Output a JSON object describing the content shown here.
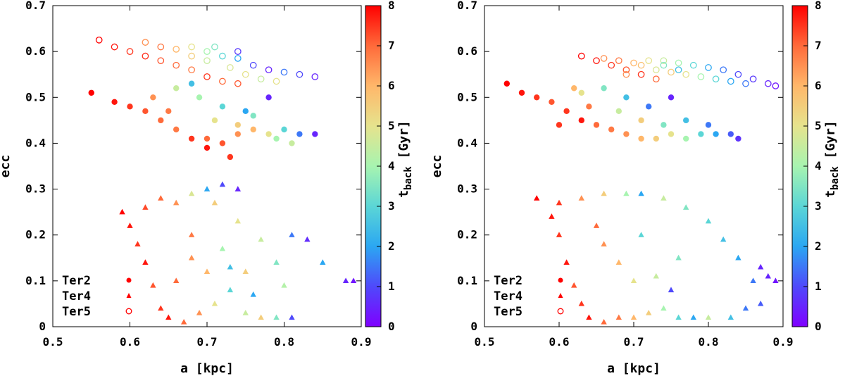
{
  "colormap": [
    "#7f00ff",
    "#4f49fb",
    "#2ba7f2",
    "#5bd6d6",
    "#a7f4b0",
    "#e6e38d",
    "#ffb76a",
    "#ff6a3a",
    "#ff0000"
  ],
  "chart_data": [
    {
      "type": "scatter",
      "xlabel": "a [kpc]",
      "ylabel": "ecc",
      "xlim": [
        0.5,
        0.9
      ],
      "ylim": [
        0,
        0.7
      ],
      "xticks": [
        "0.5",
        "0.6",
        "0.7",
        "0.8",
        "0.9"
      ],
      "yticks": [
        "0",
        "0.1",
        "0.2",
        "0.3",
        "0.4",
        "0.5",
        "0.6",
        "0.7"
      ],
      "grid": false,
      "legend_position": "bottom-left",
      "colorbar": {
        "label": "t_back [Gyr]",
        "label_main": "t",
        "label_sub": "back",
        "label_unit": " [Gyr]",
        "range": [
          0,
          8
        ],
        "ticks": [
          "0",
          "1",
          "2",
          "3",
          "4",
          "5",
          "6",
          "7",
          "8"
        ]
      },
      "series": [
        {
          "name": "Ter2",
          "marker": "filled-circle",
          "points": [
            [
              0.55,
              0.51,
              8
            ],
            [
              0.58,
              0.49,
              7.8
            ],
            [
              0.6,
              0.48,
              7.5
            ],
            [
              0.62,
              0.47,
              7.2
            ],
            [
              0.64,
              0.45,
              7
            ],
            [
              0.66,
              0.43,
              6.8
            ],
            [
              0.68,
              0.41,
              7.5
            ],
            [
              0.7,
              0.39,
              7.8
            ],
            [
              0.72,
              0.4,
              7.2
            ],
            [
              0.74,
              0.42,
              6.5
            ],
            [
              0.76,
              0.43,
              6
            ],
            [
              0.78,
              0.42,
              5
            ],
            [
              0.8,
              0.43,
              3
            ],
            [
              0.82,
              0.42,
              1.5
            ],
            [
              0.84,
              0.42,
              0.5
            ],
            [
              0.66,
              0.52,
              4.5
            ],
            [
              0.69,
              0.5,
              4
            ],
            [
              0.72,
              0.48,
              3
            ],
            [
              0.75,
              0.47,
              2
            ],
            [
              0.78,
              0.5,
              0.5
            ],
            [
              0.68,
              0.53,
              2.5
            ],
            [
              0.71,
              0.45,
              5
            ],
            [
              0.74,
              0.44,
              5.5
            ],
            [
              0.63,
              0.5,
              6.5
            ],
            [
              0.65,
              0.47,
              6.8
            ],
            [
              0.79,
              0.41,
              4
            ],
            [
              0.81,
              0.4,
              4.5
            ],
            [
              0.76,
              0.46,
              3.5
            ],
            [
              0.7,
              0.41,
              7
            ],
            [
              0.73,
              0.37,
              7.5
            ]
          ]
        },
        {
          "name": "Ter4",
          "marker": "filled-triangle",
          "points": [
            [
              0.59,
              0.25,
              8
            ],
            [
              0.6,
              0.22,
              7.8
            ],
            [
              0.61,
              0.18,
              7.5
            ],
            [
              0.62,
              0.14,
              7.8
            ],
            [
              0.63,
              0.09,
              7.2
            ],
            [
              0.64,
              0.04,
              7.5
            ],
            [
              0.65,
              0.02,
              7.8
            ],
            [
              0.67,
              0.01,
              7
            ],
            [
              0.69,
              0.03,
              6.5
            ],
            [
              0.71,
              0.05,
              5
            ],
            [
              0.73,
              0.08,
              3
            ],
            [
              0.75,
              0.03,
              4.5
            ],
            [
              0.77,
              0.02,
              5.5
            ],
            [
              0.79,
              0.02,
              3.5
            ],
            [
              0.81,
              0.02,
              1
            ],
            [
              0.8,
              0.09,
              4.2
            ],
            [
              0.79,
              0.14,
              3.5
            ],
            [
              0.77,
              0.19,
              4.5
            ],
            [
              0.74,
              0.23,
              5
            ],
            [
              0.71,
              0.27,
              5.5
            ],
            [
              0.68,
              0.29,
              4.8
            ],
            [
              0.66,
              0.27,
              6.5
            ],
            [
              0.64,
              0.28,
              7
            ],
            [
              0.62,
              0.26,
              7.3
            ],
            [
              0.7,
              0.3,
              2
            ],
            [
              0.72,
              0.31,
              1
            ],
            [
              0.74,
              0.3,
              0.5
            ],
            [
              0.81,
              0.2,
              1.5
            ],
            [
              0.83,
              0.19,
              0.6
            ],
            [
              0.85,
              0.14,
              2
            ],
            [
              0.88,
              0.1,
              0.5
            ],
            [
              0.89,
              0.1,
              0.3
            ],
            [
              0.68,
              0.15,
              6.5
            ],
            [
              0.7,
              0.12,
              6
            ],
            [
              0.72,
              0.17,
              4
            ],
            [
              0.75,
              0.12,
              5.5
            ],
            [
              0.66,
              0.1,
              7
            ],
            [
              0.68,
              0.2,
              6.8
            ],
            [
              0.73,
              0.13,
              2.5
            ],
            [
              0.76,
              0.07,
              2
            ]
          ]
        },
        {
          "name": "Ter5",
          "marker": "open-circle",
          "points": [
            [
              0.56,
              0.625,
              8
            ],
            [
              0.58,
              0.61,
              7.8
            ],
            [
              0.6,
              0.6,
              7.5
            ],
            [
              0.62,
              0.59,
              7.6
            ],
            [
              0.64,
              0.58,
              7.2
            ],
            [
              0.66,
              0.57,
              7
            ],
            [
              0.68,
              0.56,
              6.8
            ],
            [
              0.7,
              0.545,
              7.5
            ],
            [
              0.72,
              0.535,
              7
            ],
            [
              0.74,
              0.53,
              7.2
            ],
            [
              0.62,
              0.62,
              6.5
            ],
            [
              0.64,
              0.61,
              6.8
            ],
            [
              0.66,
              0.605,
              6
            ],
            [
              0.68,
              0.61,
              5
            ],
            [
              0.7,
              0.6,
              4
            ],
            [
              0.72,
              0.59,
              3
            ],
            [
              0.74,
              0.585,
              2
            ],
            [
              0.76,
              0.57,
              1
            ],
            [
              0.78,
              0.56,
              0.5
            ],
            [
              0.8,
              0.555,
              1.5
            ],
            [
              0.82,
              0.55,
              1
            ],
            [
              0.84,
              0.545,
              0.5
            ],
            [
              0.68,
              0.59,
              5.5
            ],
            [
              0.7,
              0.58,
              4.5
            ],
            [
              0.73,
              0.565,
              4.8
            ],
            [
              0.75,
              0.55,
              5
            ],
            [
              0.77,
              0.54,
              4.5
            ],
            [
              0.79,
              0.535,
              5
            ],
            [
              0.71,
              0.61,
              3.5
            ],
            [
              0.74,
              0.6,
              0.8
            ]
          ]
        }
      ]
    },
    {
      "type": "scatter",
      "xlabel": "a [kpc]",
      "ylabel": "ecc",
      "xlim": [
        0.5,
        0.9
      ],
      "ylim": [
        0,
        0.7
      ],
      "xticks": [
        "0.5",
        "0.6",
        "0.7",
        "0.8",
        "0.9"
      ],
      "yticks": [
        "0",
        "0.1",
        "0.2",
        "0.3",
        "0.4",
        "0.5",
        "0.6",
        "0.7"
      ],
      "grid": false,
      "legend_position": "bottom-left",
      "colorbar": {
        "label": "t_back [Gyr]",
        "label_main": "t",
        "label_sub": "back",
        "label_unit": " [Gyr]",
        "range": [
          0,
          8
        ],
        "ticks": [
          "0",
          "1",
          "2",
          "3",
          "4",
          "5",
          "6",
          "7",
          "8"
        ]
      },
      "series": [
        {
          "name": "Ter2",
          "marker": "filled-circle",
          "points": [
            [
              0.53,
              0.53,
              8
            ],
            [
              0.55,
              0.51,
              7.8
            ],
            [
              0.57,
              0.5,
              7.5
            ],
            [
              0.59,
              0.49,
              7.2
            ],
            [
              0.61,
              0.47,
              7.5
            ],
            [
              0.63,
              0.45,
              7.8
            ],
            [
              0.65,
              0.44,
              7
            ],
            [
              0.67,
              0.43,
              6.8
            ],
            [
              0.69,
              0.42,
              6.5
            ],
            [
              0.71,
              0.41,
              6
            ],
            [
              0.73,
              0.41,
              5.5
            ],
            [
              0.75,
              0.42,
              5
            ],
            [
              0.77,
              0.41,
              4
            ],
            [
              0.79,
              0.42,
              3
            ],
            [
              0.81,
              0.42,
              2
            ],
            [
              0.83,
              0.42,
              1.2
            ],
            [
              0.84,
              0.41,
              0.7
            ],
            [
              0.63,
              0.51,
              5
            ],
            [
              0.66,
              0.52,
              3.5
            ],
            [
              0.69,
              0.5,
              2.5
            ],
            [
              0.72,
              0.48,
              1.5
            ],
            [
              0.75,
              0.5,
              0.5
            ],
            [
              0.68,
              0.47,
              4.5
            ],
            [
              0.71,
              0.45,
              5.5
            ],
            [
              0.74,
              0.44,
              3.5
            ],
            [
              0.77,
              0.45,
              2.5
            ],
            [
              0.8,
              0.44,
              1.5
            ],
            [
              0.6,
              0.44,
              7.5
            ],
            [
              0.64,
              0.48,
              6.8
            ],
            [
              0.62,
              0.52,
              6
            ]
          ]
        },
        {
          "name": "Ter4",
          "marker": "filled-triangle",
          "points": [
            [
              0.57,
              0.28,
              8
            ],
            [
              0.59,
              0.24,
              7.8
            ],
            [
              0.6,
              0.2,
              7.5
            ],
            [
              0.61,
              0.14,
              7.8
            ],
            [
              0.62,
              0.09,
              7.2
            ],
            [
              0.63,
              0.05,
              7.5
            ],
            [
              0.64,
              0.02,
              7.8
            ],
            [
              0.66,
              0.01,
              7
            ],
            [
              0.68,
              0.02,
              6.8
            ],
            [
              0.7,
              0.02,
              6
            ],
            [
              0.72,
              0.03,
              5.5
            ],
            [
              0.74,
              0.04,
              4
            ],
            [
              0.76,
              0.02,
              3
            ],
            [
              0.78,
              0.02,
              2
            ],
            [
              0.8,
              0.02,
              4.5
            ],
            [
              0.83,
              0.02,
              2.5
            ],
            [
              0.85,
              0.04,
              1.5
            ],
            [
              0.87,
              0.05,
              1.2
            ],
            [
              0.86,
              0.1,
              1.5
            ],
            [
              0.84,
              0.15,
              2
            ],
            [
              0.82,
              0.19,
              2.5
            ],
            [
              0.8,
              0.23,
              3
            ],
            [
              0.77,
              0.26,
              3.5
            ],
            [
              0.74,
              0.28,
              4.5
            ],
            [
              0.71,
              0.29,
              2
            ],
            [
              0.69,
              0.29,
              4
            ],
            [
              0.66,
              0.29,
              5.5
            ],
            [
              0.63,
              0.28,
              6.5
            ],
            [
              0.6,
              0.27,
              7.5
            ],
            [
              0.87,
              0.13,
              0.5
            ],
            [
              0.88,
              0.11,
              0.5
            ],
            [
              0.89,
              0.1,
              0.3
            ],
            [
              0.66,
              0.18,
              6.5
            ],
            [
              0.68,
              0.14,
              6
            ],
            [
              0.7,
              0.1,
              5
            ],
            [
              0.73,
              0.11,
              4.5
            ],
            [
              0.76,
              0.15,
              3.5
            ],
            [
              0.75,
              0.08,
              1
            ],
            [
              0.65,
              0.22,
              7
            ],
            [
              0.71,
              0.2,
              3
            ]
          ]
        },
        {
          "name": "Ter5",
          "marker": "open-circle",
          "points": [
            [
              0.63,
              0.59,
              8
            ],
            [
              0.65,
              0.58,
              7.8
            ],
            [
              0.67,
              0.57,
              7.5
            ],
            [
              0.69,
              0.56,
              7.2
            ],
            [
              0.71,
              0.55,
              7.5
            ],
            [
              0.73,
              0.54,
              7
            ],
            [
              0.66,
              0.585,
              6.5
            ],
            [
              0.68,
              0.58,
              6.8
            ],
            [
              0.7,
              0.575,
              6
            ],
            [
              0.72,
              0.58,
              5
            ],
            [
              0.74,
              0.58,
              4.5
            ],
            [
              0.76,
              0.575,
              4
            ],
            [
              0.78,
              0.57,
              3
            ],
            [
              0.8,
              0.565,
              2
            ],
            [
              0.82,
              0.56,
              1.5
            ],
            [
              0.84,
              0.55,
              1
            ],
            [
              0.86,
              0.54,
              0.8
            ],
            [
              0.88,
              0.53,
              0.5
            ],
            [
              0.89,
              0.525,
              0.3
            ],
            [
              0.73,
              0.56,
              4.8
            ],
            [
              0.75,
              0.555,
              5.5
            ],
            [
              0.77,
              0.55,
              5
            ],
            [
              0.79,
              0.545,
              4
            ],
            [
              0.81,
              0.54,
              3
            ],
            [
              0.83,
              0.535,
              2
            ],
            [
              0.85,
              0.53,
              1.5
            ],
            [
              0.74,
              0.57,
              3.5
            ],
            [
              0.76,
              0.56,
              2.5
            ],
            [
              0.69,
              0.55,
              6.5
            ],
            [
              0.71,
              0.57,
              5.8
            ]
          ]
        }
      ]
    }
  ]
}
